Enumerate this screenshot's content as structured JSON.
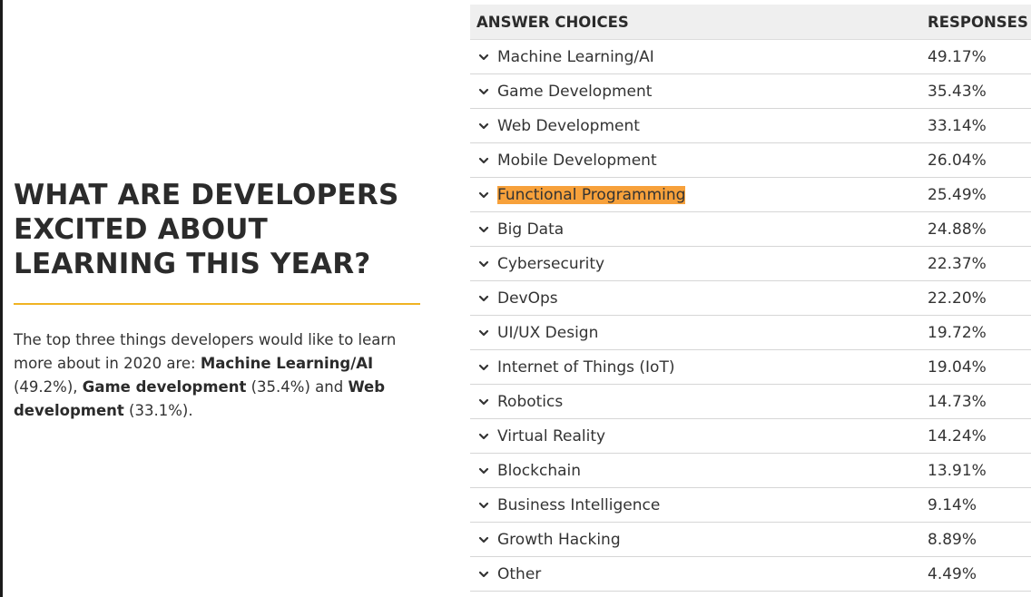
{
  "intro": {
    "title": "WHAT ARE DEVELOPERS EXCITED ABOUT LEARNING THIS YEAR?",
    "text_1": "The top three things developers would like to learn more about in 2020 are: ",
    "bold_1": "Machine Learning/AI",
    "text_2": " (49.2%), ",
    "bold_2": "Game development",
    "text_3": " (35.4%) and ",
    "bold_3": "Web development",
    "text_4": " (33.1%)."
  },
  "table": {
    "header_answer": "ANSWER CHOICES",
    "header_responses": "RESPONSES",
    "rows": [
      {
        "label": "Machine Learning/AI",
        "value": "49.17%"
      },
      {
        "label": "Game Development",
        "value": "35.43%"
      },
      {
        "label": "Web Development",
        "value": "33.14%"
      },
      {
        "label": "Mobile Development",
        "value": "26.04%"
      },
      {
        "label": "Functional Programming",
        "value": "25.49%"
      },
      {
        "label": "Big Data",
        "value": "24.88%"
      },
      {
        "label": "Cybersecurity",
        "value": "22.37%"
      },
      {
        "label": "DevOps",
        "value": "22.20%"
      },
      {
        "label": "UI/UX Design",
        "value": "19.72%"
      },
      {
        "label": "Internet of Things (IoT)",
        "value": "19.04%"
      },
      {
        "label": "Robotics",
        "value": "14.73%"
      },
      {
        "label": "Virtual Reality",
        "value": "14.24%"
      },
      {
        "label": "Blockchain",
        "value": "13.91%"
      },
      {
        "label": "Business Intelligence",
        "value": "9.14%"
      },
      {
        "label": "Growth Hacking",
        "value": "8.89%"
      },
      {
        "label": "Other",
        "value": "4.49%"
      }
    ],
    "highlighted_row": 4,
    "highlight_color": "#f7a13b",
    "row_icon": "chevron-down-icon"
  },
  "accent_color": "#f0b323"
}
